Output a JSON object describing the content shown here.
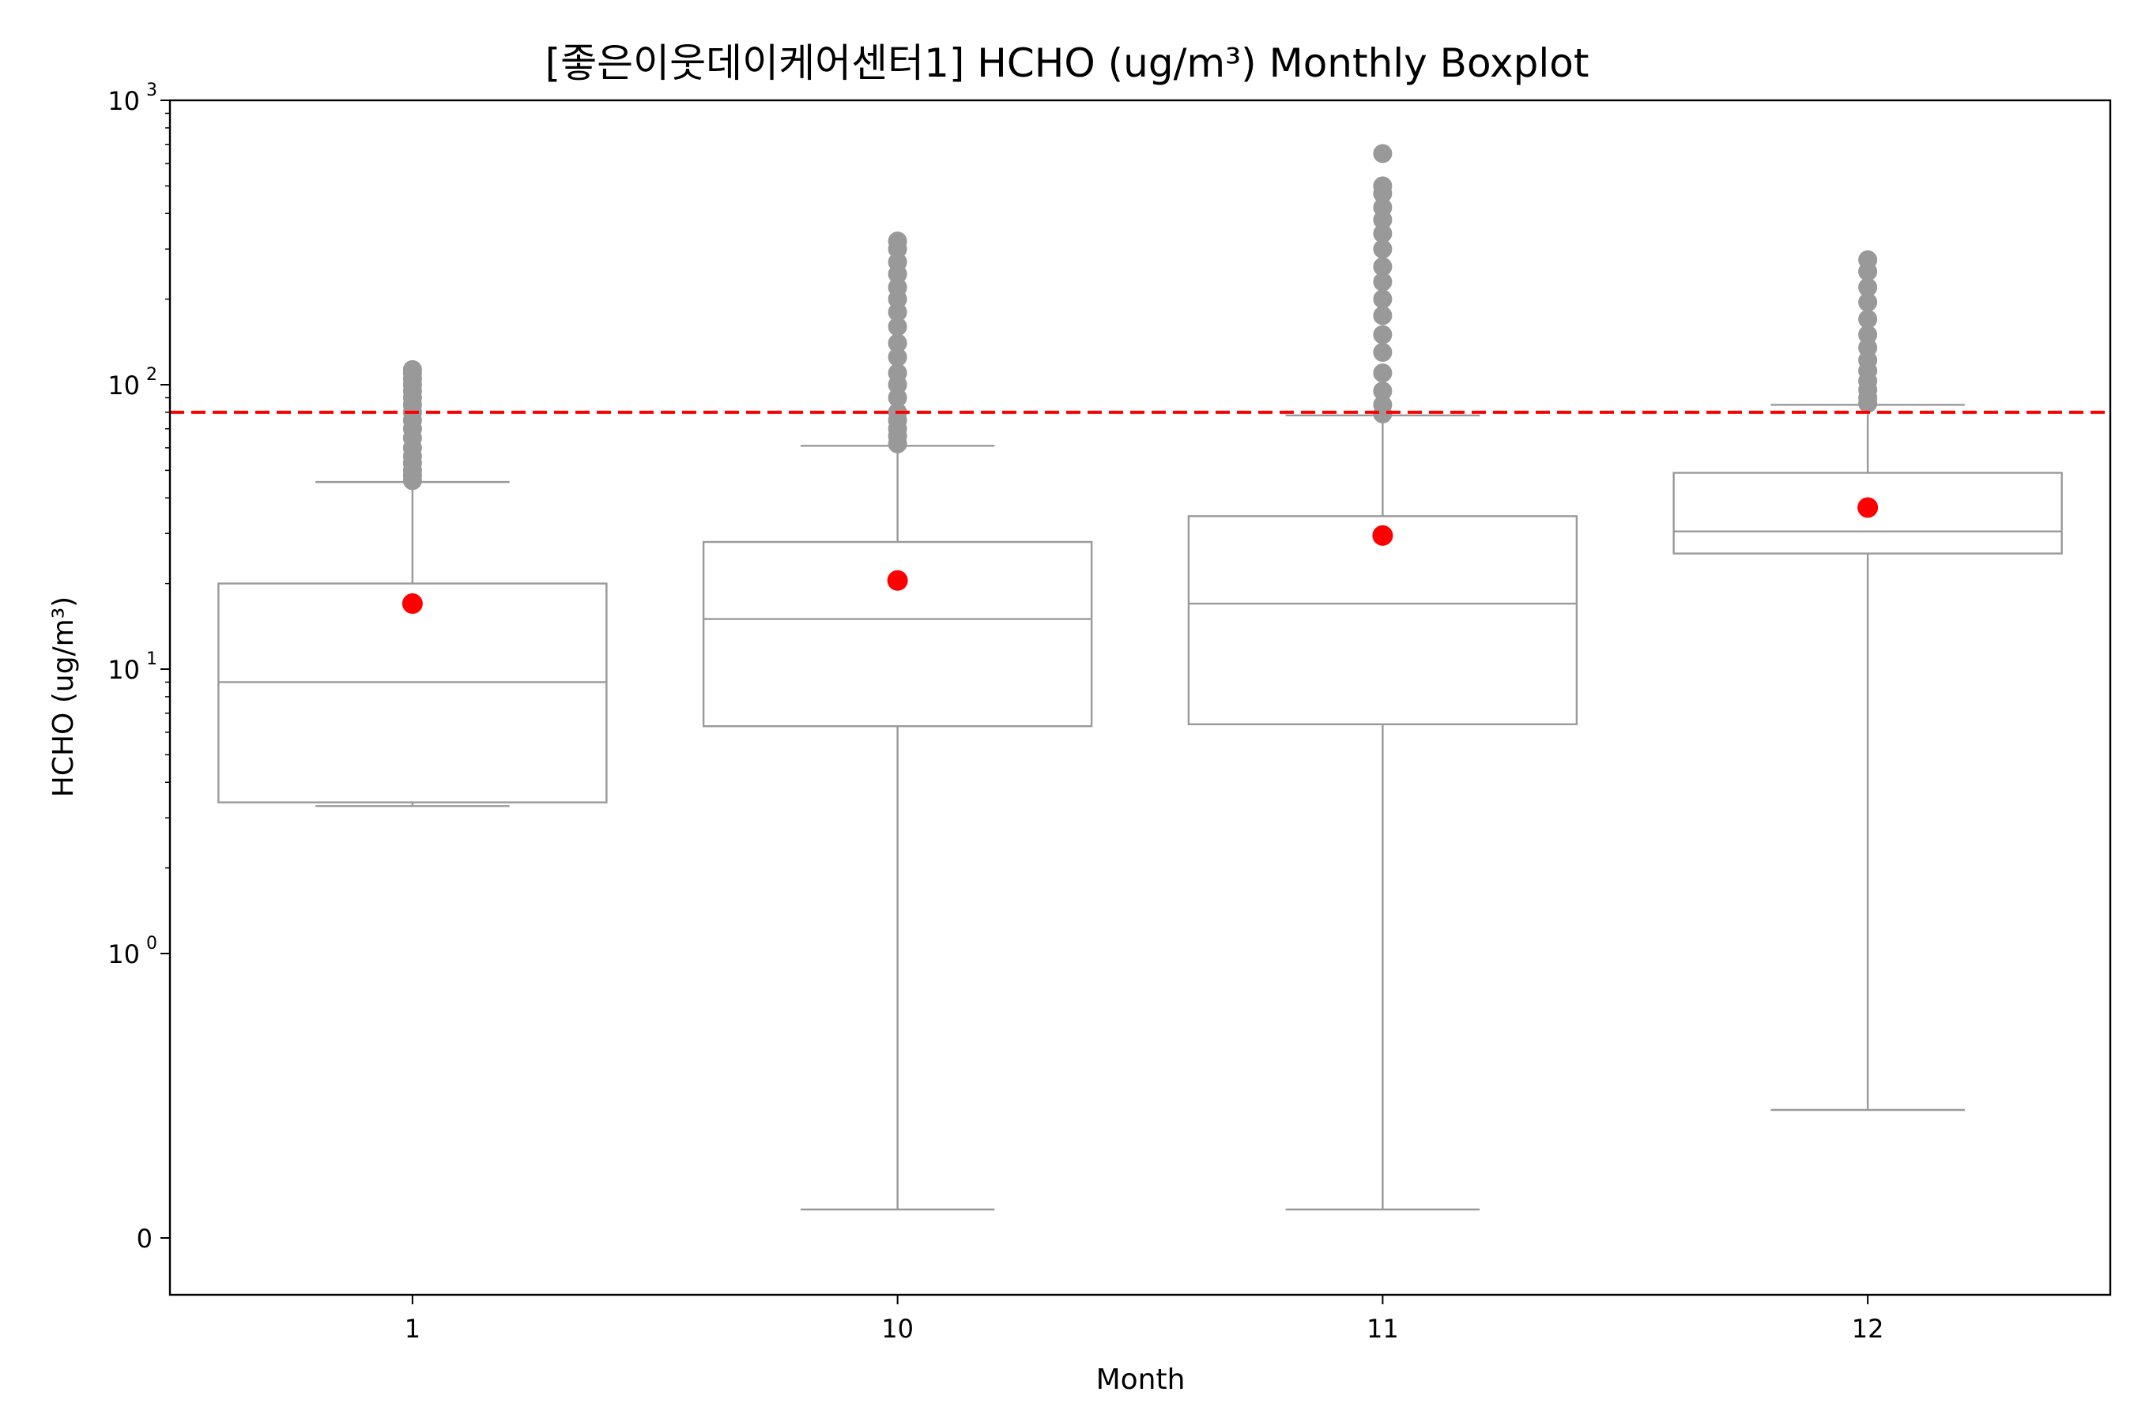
{
  "chart_data": {
    "type": "boxplot",
    "title": "[좋은이웃데이케어센터1] HCHO (ug/m³) Monthly Boxplot",
    "xlabel": "Month",
    "ylabel": "HCHO (ug/m³)",
    "yscale": "symlog",
    "yscale_linthresh": 1,
    "ylim": [
      -0.2,
      1000
    ],
    "ytick_labels": [
      {
        "value": 0,
        "base": "0",
        "exp": ""
      },
      {
        "value": 1,
        "base": "10",
        "exp": "0"
      },
      {
        "value": 10,
        "base": "10",
        "exp": "1"
      },
      {
        "value": 100,
        "base": "10",
        "exp": "2"
      },
      {
        "value": 1000,
        "base": "10",
        "exp": "3"
      }
    ],
    "categories": [
      "1",
      "10",
      "11",
      "12"
    ],
    "threshold_line": {
      "value": 80,
      "color": "#ff0000",
      "style": "dashed"
    },
    "colors": {
      "box": "#999999",
      "mean": "#ff0000",
      "outlier": "#999999"
    },
    "boxes": [
      {
        "month": "1",
        "whisker_low": 3.3,
        "q1": 3.4,
        "median": 9.0,
        "q3": 20.0,
        "whisker_high": 45.5,
        "mean": 17.0,
        "outliers": [
          46,
          48,
          50,
          53,
          56,
          60,
          65,
          70,
          75,
          80,
          85,
          90,
          95,
          100,
          105,
          110,
          113
        ]
      },
      {
        "month": "10",
        "whisker_low": 0.1,
        "q1": 6.3,
        "median": 15.0,
        "q3": 28.0,
        "whisker_high": 61.0,
        "mean": 20.5,
        "outliers": [
          62,
          66,
          70,
          75,
          80,
          90,
          100,
          110,
          125,
          140,
          160,
          180,
          200,
          220,
          245,
          270,
          300,
          320
        ]
      },
      {
        "month": "11",
        "whisker_low": 0.1,
        "q1": 6.4,
        "median": 17.0,
        "q3": 34.5,
        "whisker_high": 78.0,
        "mean": 29.5,
        "outliers": [
          79,
          85,
          95,
          110,
          130,
          150,
          175,
          200,
          230,
          260,
          300,
          340,
          380,
          420,
          470,
          500,
          650
        ]
      },
      {
        "month": "12",
        "whisker_low": 0.45,
        "q1": 25.5,
        "median": 30.5,
        "q3": 49.0,
        "whisker_high": 85.0,
        "mean": 37.0,
        "outliers": [
          86,
          90,
          96,
          103,
          112,
          122,
          135,
          150,
          170,
          195,
          220,
          250,
          275
        ]
      }
    ]
  }
}
